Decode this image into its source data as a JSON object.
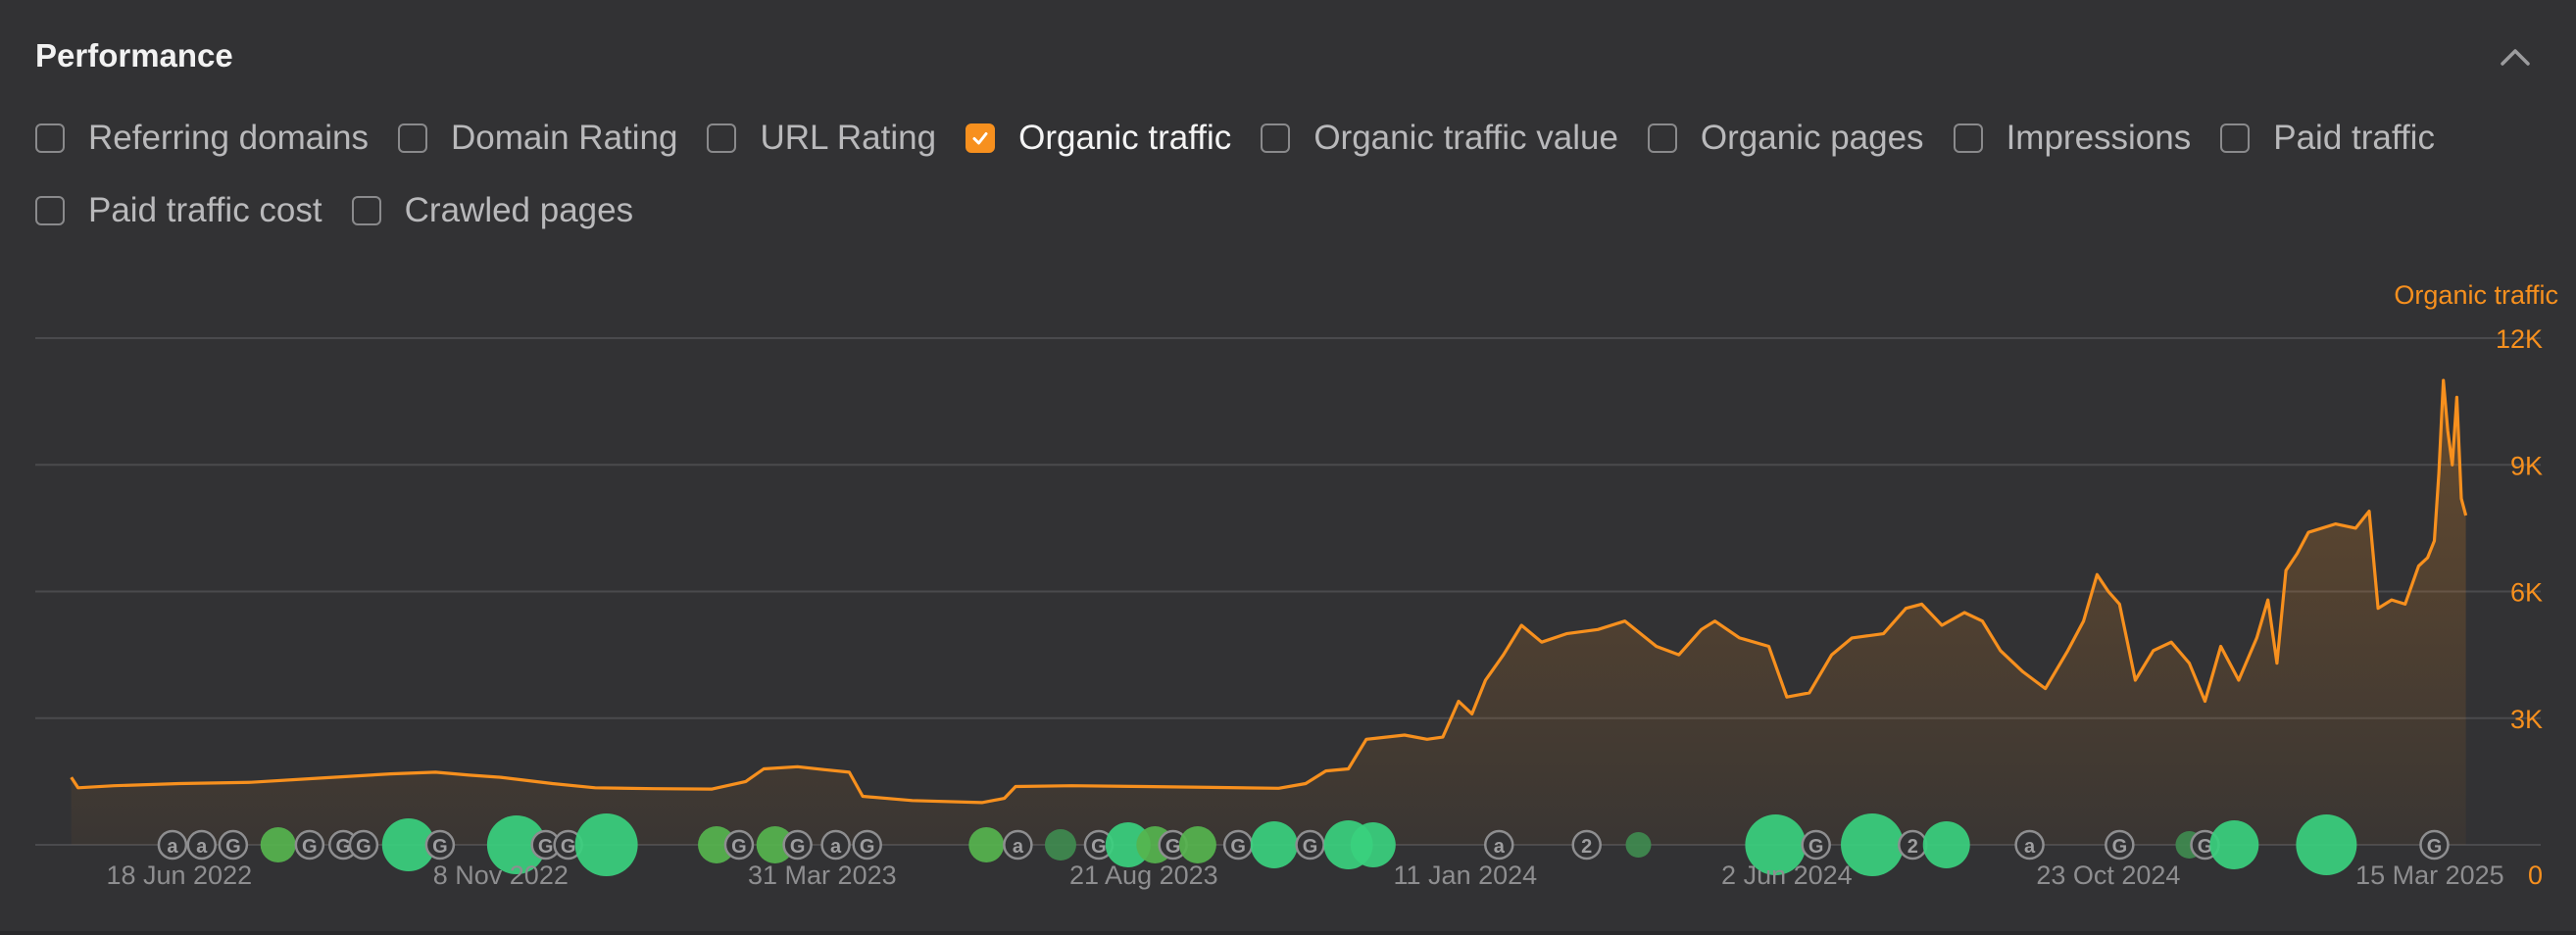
{
  "header": {
    "title": "Performance",
    "collapse_icon": "chevron-up-icon"
  },
  "metrics": [
    {
      "label": "Referring domains",
      "checked": false
    },
    {
      "label": "Domain Rating",
      "checked": false
    },
    {
      "label": "URL Rating",
      "checked": false
    },
    {
      "label": "Organic traffic",
      "checked": true
    },
    {
      "label": "Organic traffic value",
      "checked": false
    },
    {
      "label": "Organic pages",
      "checked": false
    },
    {
      "label": "Impressions",
      "checked": false
    },
    {
      "label": "Paid traffic",
      "checked": false
    },
    {
      "label": "Paid traffic cost",
      "checked": false
    },
    {
      "label": "Crawled pages",
      "checked": false
    }
  ],
  "chart_data": {
    "type": "area",
    "series": [
      {
        "name": "Organic traffic",
        "color": "#f7901e",
        "points": [
          [
            "2022-05-01",
            1600
          ],
          [
            "2022-05-04",
            1350
          ],
          [
            "2022-05-20",
            1400
          ],
          [
            "2022-06-18",
            1450
          ],
          [
            "2022-07-20",
            1480
          ],
          [
            "2022-08-20",
            1580
          ],
          [
            "2022-09-20",
            1680
          ],
          [
            "2022-10-10",
            1720
          ],
          [
            "2022-10-25",
            1650
          ],
          [
            "2022-11-08",
            1600
          ],
          [
            "2022-12-01",
            1450
          ],
          [
            "2022-12-20",
            1350
          ],
          [
            "2023-01-15",
            1330
          ],
          [
            "2023-02-10",
            1320
          ],
          [
            "2023-02-25",
            1500
          ],
          [
            "2023-03-05",
            1800
          ],
          [
            "2023-03-20",
            1850
          ],
          [
            "2023-04-01",
            1780
          ],
          [
            "2023-04-12",
            1720
          ],
          [
            "2023-04-18",
            1150
          ],
          [
            "2023-05-10",
            1050
          ],
          [
            "2023-06-10",
            1000
          ],
          [
            "2023-06-20",
            1100
          ],
          [
            "2023-06-25",
            1380
          ],
          [
            "2023-07-20",
            1400
          ],
          [
            "2023-08-21",
            1380
          ],
          [
            "2023-09-20",
            1360
          ],
          [
            "2023-10-20",
            1340
          ],
          [
            "2023-11-01",
            1450
          ],
          [
            "2023-11-10",
            1750
          ],
          [
            "2023-11-20",
            1800
          ],
          [
            "2023-11-28",
            2500
          ],
          [
            "2023-12-15",
            2600
          ],
          [
            "2023-12-25",
            2500
          ],
          [
            "2024-01-01",
            2550
          ],
          [
            "2024-01-08",
            3400
          ],
          [
            "2024-01-14",
            3100
          ],
          [
            "2024-01-20",
            3900
          ],
          [
            "2024-01-28",
            4500
          ],
          [
            "2024-02-05",
            5200
          ],
          [
            "2024-02-14",
            4800
          ],
          [
            "2024-02-25",
            5000
          ],
          [
            "2024-03-10",
            5100
          ],
          [
            "2024-03-22",
            5300
          ],
          [
            "2024-04-05",
            4700
          ],
          [
            "2024-04-15",
            4500
          ],
          [
            "2024-04-25",
            5100
          ],
          [
            "2024-05-01",
            5300
          ],
          [
            "2024-05-12",
            4900
          ],
          [
            "2024-05-25",
            4700
          ],
          [
            "2024-06-02",
            3500
          ],
          [
            "2024-06-12",
            3600
          ],
          [
            "2024-06-22",
            4500
          ],
          [
            "2024-07-01",
            4900
          ],
          [
            "2024-07-15",
            5000
          ],
          [
            "2024-07-25",
            5600
          ],
          [
            "2024-08-01",
            5700
          ],
          [
            "2024-08-10",
            5200
          ],
          [
            "2024-08-20",
            5500
          ],
          [
            "2024-08-28",
            5300
          ],
          [
            "2024-09-05",
            4600
          ],
          [
            "2024-09-15",
            4100
          ],
          [
            "2024-09-25",
            3700
          ],
          [
            "2024-10-05",
            4600
          ],
          [
            "2024-10-12",
            5300
          ],
          [
            "2024-10-18",
            6400
          ],
          [
            "2024-10-23",
            6000
          ],
          [
            "2024-10-28",
            5700
          ],
          [
            "2024-11-04",
            3900
          ],
          [
            "2024-11-12",
            4600
          ],
          [
            "2024-11-20",
            4800
          ],
          [
            "2024-11-28",
            4300
          ],
          [
            "2024-12-05",
            3400
          ],
          [
            "2024-12-12",
            4700
          ],
          [
            "2024-12-20",
            3900
          ],
          [
            "2024-12-28",
            4900
          ],
          [
            "2025-01-02",
            5800
          ],
          [
            "2025-01-06",
            4300
          ],
          [
            "2025-01-10",
            6500
          ],
          [
            "2025-01-15",
            6900
          ],
          [
            "2025-01-20",
            7400
          ],
          [
            "2025-02-01",
            7600
          ],
          [
            "2025-02-10",
            7500
          ],
          [
            "2025-02-16",
            7900
          ],
          [
            "2025-02-20",
            5600
          ],
          [
            "2025-02-26",
            5800
          ],
          [
            "2025-03-04",
            5700
          ],
          [
            "2025-03-10",
            6600
          ],
          [
            "2025-03-14",
            6800
          ],
          [
            "2025-03-17",
            7200
          ],
          [
            "2025-03-19",
            8800
          ],
          [
            "2025-03-21",
            11000
          ],
          [
            "2025-03-23",
            9800
          ],
          [
            "2025-03-25",
            9000
          ],
          [
            "2025-03-27",
            10600
          ],
          [
            "2025-03-29",
            8200
          ],
          [
            "2025-03-31",
            7800
          ]
        ]
      }
    ],
    "x_ticks": [
      "18 Jun 2022",
      "8 Nov 2022",
      "31 Mar 2023",
      "21 Aug 2023",
      "11 Jan 2024",
      "2 Jun 2024",
      "23 Oct 2024",
      "15 Mar 2025"
    ],
    "y_ticks": [
      "0",
      "3K",
      "6K",
      "9K",
      "12K"
    ],
    "y_axis_label": "Organic traffic",
    "ylim": [
      0,
      12000
    ],
    "xlim": [
      "2022-04-15",
      "2025-04-15"
    ],
    "grid": true,
    "y_axis_side": "right",
    "annotation_markers": [
      {
        "type": "letter",
        "text": "a",
        "date": "2022-06-15"
      },
      {
        "type": "letter",
        "text": "a",
        "date": "2022-06-28"
      },
      {
        "type": "letter",
        "text": "G",
        "date": "2022-07-12"
      },
      {
        "type": "bubble",
        "date": "2022-08-01",
        "level": 0.3
      },
      {
        "type": "letter",
        "text": "G",
        "date": "2022-08-15"
      },
      {
        "type": "letter",
        "text": "G",
        "date": "2022-08-30"
      },
      {
        "type": "letter",
        "text": "G",
        "date": "2022-09-08"
      },
      {
        "type": "bubble",
        "date": "2022-09-28",
        "level": 0.75
      },
      {
        "type": "letter",
        "text": "G",
        "date": "2022-10-12"
      },
      {
        "type": "bubble",
        "date": "2022-11-15",
        "level": 0.9
      },
      {
        "type": "letter",
        "text": "G",
        "date": "2022-11-28"
      },
      {
        "type": "letter",
        "text": "G",
        "date": "2022-12-08"
      },
      {
        "type": "bubble",
        "date": "2022-12-25",
        "level": 1.0
      },
      {
        "type": "bubble",
        "date": "2023-02-12",
        "level": 0.35
      },
      {
        "type": "letter",
        "text": "G",
        "date": "2023-02-22"
      },
      {
        "type": "bubble",
        "date": "2023-03-10",
        "level": 0.35
      },
      {
        "type": "letter",
        "text": "G",
        "date": "2023-03-20"
      },
      {
        "type": "letter",
        "text": "a",
        "date": "2023-04-06"
      },
      {
        "type": "letter",
        "text": "G",
        "date": "2023-04-20"
      },
      {
        "type": "bubble",
        "date": "2023-06-12",
        "level": 0.3
      },
      {
        "type": "letter",
        "text": "a",
        "date": "2023-06-26"
      },
      {
        "type": "bubble",
        "date": "2023-07-15",
        "level": 0.2
      },
      {
        "type": "letter",
        "text": "G",
        "date": "2023-08-01"
      },
      {
        "type": "bubble",
        "date": "2023-08-14",
        "level": 0.55
      },
      {
        "type": "bubble",
        "date": "2023-08-26",
        "level": 0.35
      },
      {
        "type": "letter",
        "text": "G",
        "date": "2023-09-03"
      },
      {
        "type": "bubble",
        "date": "2023-09-14",
        "level": 0.35
      },
      {
        "type": "letter",
        "text": "G",
        "date": "2023-10-02"
      },
      {
        "type": "bubble",
        "date": "2023-10-18",
        "level": 0.6
      },
      {
        "type": "letter",
        "text": "G",
        "date": "2023-11-03"
      },
      {
        "type": "bubble",
        "date": "2023-11-20",
        "level": 0.65
      },
      {
        "type": "bubble",
        "date": "2023-12-01",
        "level": 0.55
      },
      {
        "type": "letter",
        "text": "a",
        "date": "2024-01-26"
      },
      {
        "type": "letter",
        "text": "2",
        "date": "2024-03-05"
      },
      {
        "type": "bubble",
        "date": "2024-03-28",
        "level": 0.05
      },
      {
        "type": "bubble",
        "date": "2024-05-28",
        "level": 0.95
      },
      {
        "type": "letter",
        "text": "G",
        "date": "2024-06-15"
      },
      {
        "type": "bubble",
        "date": "2024-07-10",
        "level": 1.0
      },
      {
        "type": "letter",
        "text": "2",
        "date": "2024-07-28"
      },
      {
        "type": "bubble",
        "date": "2024-08-12",
        "level": 0.6
      },
      {
        "type": "letter",
        "text": "a",
        "date": "2024-09-18"
      },
      {
        "type": "letter",
        "text": "G",
        "date": "2024-10-28"
      },
      {
        "type": "bubble",
        "date": "2024-11-28",
        "level": 0.1
      },
      {
        "type": "letter",
        "text": "G",
        "date": "2024-12-05"
      },
      {
        "type": "bubble",
        "date": "2024-12-18",
        "level": 0.65
      },
      {
        "type": "bubble",
        "date": "2025-01-28",
        "level": 0.95
      },
      {
        "type": "letter",
        "text": "G",
        "date": "2025-03-17"
      }
    ]
  }
}
